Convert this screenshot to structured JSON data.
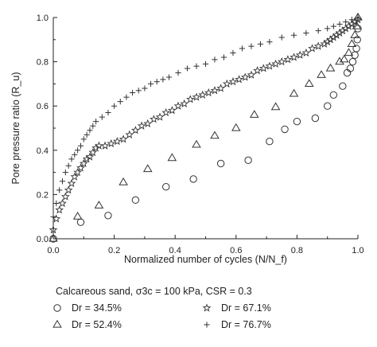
{
  "chart_data": {
    "type": "scatter",
    "xlabel": "Normalized number of cycles (N/N_f)",
    "ylabel": "Pore pressure ratio (R_u)",
    "xlim": [
      0.0,
      1.0
    ],
    "ylim": [
      0.0,
      1.0
    ],
    "xticks": [
      "0.0",
      "0.2",
      "0.4",
      "0.6",
      "0.8",
      "1.0"
    ],
    "yticks": [
      "0.0",
      "0.2",
      "0.4",
      "0.6",
      "0.8",
      "1.0"
    ],
    "grid": false,
    "legend_position": "bottom",
    "legend_title": "Calcareous sand, σ3c = 100 kPa, CSR = 0.3",
    "series": [
      {
        "name": "Dr = 34.5%",
        "marker": "circle",
        "x": [
          0.0,
          0.09,
          0.18,
          0.27,
          0.37,
          0.46,
          0.55,
          0.64,
          0.71,
          0.76,
          0.8,
          0.86,
          0.9,
          0.92,
          0.95,
          0.965,
          0.975,
          0.983,
          0.99,
          0.995,
          0.998,
          1.0
        ],
        "y": [
          0.0,
          0.075,
          0.105,
          0.175,
          0.235,
          0.27,
          0.34,
          0.355,
          0.44,
          0.495,
          0.53,
          0.545,
          0.6,
          0.65,
          0.69,
          0.75,
          0.77,
          0.8,
          0.83,
          0.86,
          0.9,
          0.95
        ]
      },
      {
        "name": "Dr = 52.4%",
        "marker": "triangle",
        "x": [
          0.0,
          0.08,
          0.15,
          0.23,
          0.31,
          0.39,
          0.47,
          0.53,
          0.6,
          0.66,
          0.73,
          0.79,
          0.84,
          0.88,
          0.91,
          0.94,
          0.955,
          0.97,
          0.98,
          0.99,
          0.996,
          1.0
        ],
        "y": [
          0.0,
          0.1,
          0.15,
          0.255,
          0.315,
          0.365,
          0.425,
          0.465,
          0.5,
          0.56,
          0.595,
          0.655,
          0.7,
          0.74,
          0.77,
          0.8,
          0.81,
          0.84,
          0.88,
          0.92,
          0.96,
          1.0
        ]
      },
      {
        "name": "Dr = 67.1%",
        "marker": "star",
        "x": [
          0.0,
          0.01,
          0.02,
          0.03,
          0.04,
          0.05,
          0.06,
          0.07,
          0.08,
          0.09,
          0.1,
          0.11,
          0.12,
          0.13,
          0.14,
          0.15,
          0.17,
          0.19,
          0.21,
          0.23,
          0.25,
          0.27,
          0.29,
          0.31,
          0.33,
          0.35,
          0.37,
          0.39,
          0.41,
          0.43,
          0.45,
          0.47,
          0.49,
          0.51,
          0.53,
          0.55,
          0.57,
          0.59,
          0.61,
          0.63,
          0.65,
          0.67,
          0.69,
          0.71,
          0.73,
          0.75,
          0.77,
          0.79,
          0.81,
          0.83,
          0.85,
          0.87,
          0.89,
          0.9,
          0.91,
          0.92,
          0.93,
          0.94,
          0.95,
          0.96,
          0.97,
          0.98,
          0.99,
          1.0
        ],
        "y": [
          0.04,
          0.09,
          0.13,
          0.16,
          0.19,
          0.22,
          0.25,
          0.28,
          0.3,
          0.32,
          0.34,
          0.36,
          0.37,
          0.39,
          0.41,
          0.42,
          0.42,
          0.43,
          0.44,
          0.45,
          0.47,
          0.49,
          0.51,
          0.52,
          0.54,
          0.55,
          0.57,
          0.58,
          0.6,
          0.61,
          0.63,
          0.64,
          0.65,
          0.66,
          0.67,
          0.68,
          0.7,
          0.71,
          0.72,
          0.73,
          0.74,
          0.76,
          0.77,
          0.78,
          0.79,
          0.8,
          0.81,
          0.82,
          0.83,
          0.84,
          0.86,
          0.87,
          0.88,
          0.89,
          0.9,
          0.91,
          0.92,
          0.93,
          0.94,
          0.95,
          0.96,
          0.97,
          0.98,
          0.99
        ]
      },
      {
        "name": "Dr = 76.7%",
        "marker": "plus",
        "x": [
          0.0,
          0.01,
          0.02,
          0.03,
          0.04,
          0.05,
          0.06,
          0.07,
          0.08,
          0.09,
          0.1,
          0.11,
          0.12,
          0.13,
          0.14,
          0.16,
          0.18,
          0.2,
          0.22,
          0.24,
          0.26,
          0.28,
          0.3,
          0.32,
          0.34,
          0.36,
          0.38,
          0.41,
          0.44,
          0.47,
          0.5,
          0.53,
          0.56,
          0.59,
          0.62,
          0.65,
          0.68,
          0.71,
          0.75,
          0.79,
          0.83,
          0.87,
          0.9,
          0.92,
          0.94,
          0.96,
          0.98,
          1.0
        ],
        "y": [
          0.1,
          0.16,
          0.22,
          0.26,
          0.3,
          0.33,
          0.36,
          0.38,
          0.4,
          0.42,
          0.45,
          0.47,
          0.49,
          0.51,
          0.53,
          0.55,
          0.57,
          0.6,
          0.62,
          0.64,
          0.66,
          0.67,
          0.68,
          0.7,
          0.71,
          0.72,
          0.73,
          0.75,
          0.77,
          0.78,
          0.79,
          0.81,
          0.82,
          0.84,
          0.86,
          0.87,
          0.88,
          0.89,
          0.91,
          0.92,
          0.93,
          0.94,
          0.95,
          0.96,
          0.97,
          0.98,
          0.99,
          1.0
        ]
      }
    ]
  },
  "legend": {
    "title": "Calcareous sand, σ3c = 100 kPa, CSR = 0.3",
    "items": [
      {
        "marker": "circle",
        "label": "Dr = 34.5%"
      },
      {
        "marker": "star",
        "label": "Dr = 67.1%"
      },
      {
        "marker": "triangle",
        "label": "Dr = 52.4%"
      },
      {
        "marker": "plus",
        "label": "Dr = 76.7%"
      }
    ]
  }
}
